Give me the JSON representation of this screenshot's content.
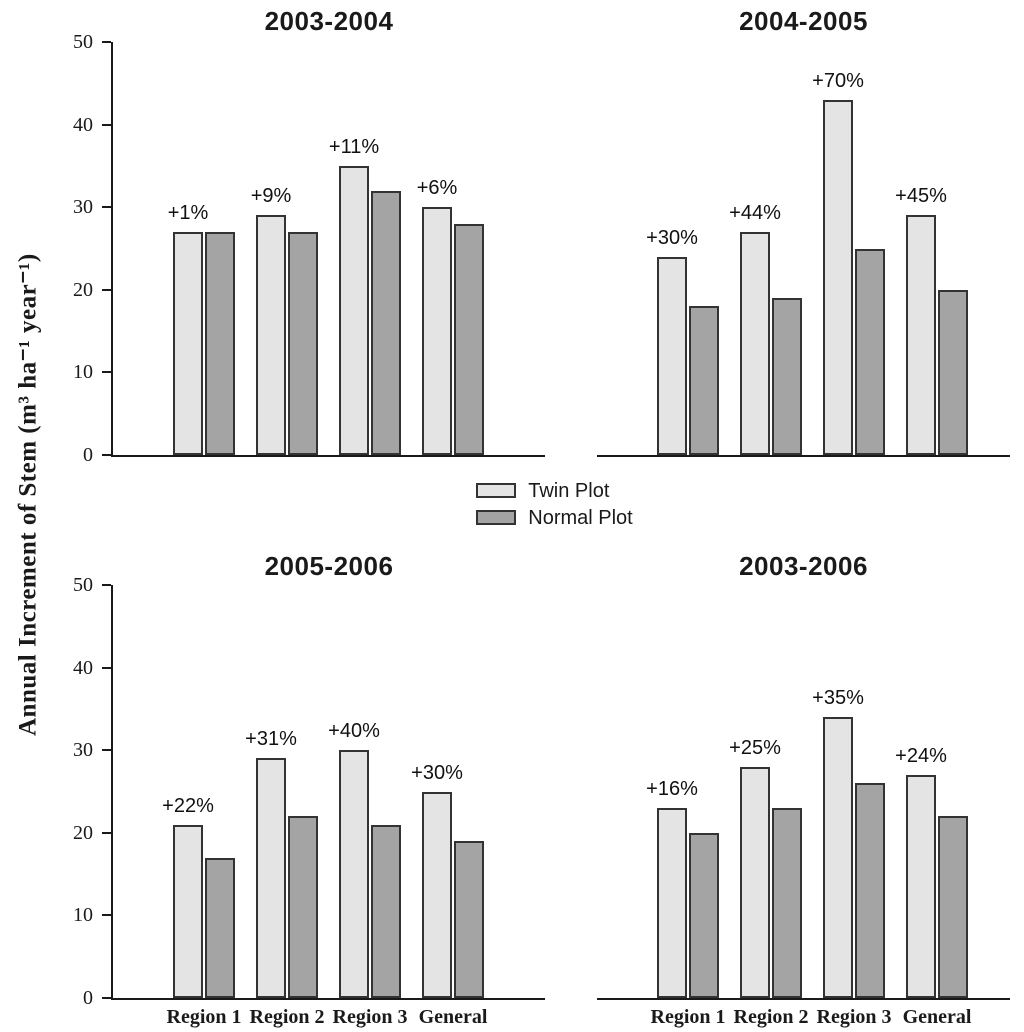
{
  "figure": {
    "y_axis_title": "Annual Increment of Stem  (m³ ha⁻¹ year⁻¹)"
  },
  "legend": {
    "items": [
      {
        "label": "Twin Plot",
        "color": "#e4e4e4"
      },
      {
        "label": "Normal Plot",
        "color": "#a4a4a4"
      }
    ]
  },
  "chart_data": {
    "type": "bar",
    "grouped": true,
    "categories": [
      "Region 1",
      "Region 2",
      "Region 3",
      "General"
    ],
    "ylabel": "Annual Increment of Stem (m³ ha⁻¹ year⁻¹)",
    "ylim": [
      0,
      50
    ],
    "yticks": [
      0,
      10,
      20,
      30,
      40,
      50
    ],
    "grid": false,
    "legend_position": "centered between top and bottom panel rows",
    "colors": {
      "twin": "#e4e4e4",
      "normal": "#a4a4a4",
      "bar_border": "#333333",
      "axis": "#1a1a1a"
    },
    "panels": [
      {
        "title": "2003-2004",
        "y_axis_labels": true,
        "x_axis_labels": false,
        "series": [
          {
            "name": "Twin Plot",
            "values": [
              27,
              29,
              35,
              30
            ]
          },
          {
            "name": "Normal Plot",
            "values": [
              27,
              27,
              32,
              28
            ]
          }
        ],
        "annotations": [
          "+1%",
          "+9%",
          "+11%",
          "+6%"
        ]
      },
      {
        "title": "2004-2005",
        "y_axis_labels": false,
        "x_axis_labels": false,
        "series": [
          {
            "name": "Twin Plot",
            "values": [
              24,
              27,
              43,
              29
            ]
          },
          {
            "name": "Normal Plot",
            "values": [
              18,
              19,
              25,
              20
            ]
          }
        ],
        "annotations": [
          "+30%",
          "+44%",
          "+70%",
          "+45%"
        ]
      },
      {
        "title": "2005-2006",
        "y_axis_labels": true,
        "x_axis_labels": true,
        "series": [
          {
            "name": "Twin Plot",
            "values": [
              21,
              29,
              30,
              25
            ]
          },
          {
            "name": "Normal Plot",
            "values": [
              17,
              22,
              21,
              19
            ]
          }
        ],
        "annotations": [
          "+22%",
          "+31%",
          "+40%",
          "+30%"
        ]
      },
      {
        "title": "2003-2006",
        "y_axis_labels": false,
        "x_axis_labels": true,
        "series": [
          {
            "name": "Twin Plot",
            "values": [
              23,
              28,
              34,
              27
            ]
          },
          {
            "name": "Normal Plot",
            "values": [
              20,
              23,
              26,
              22
            ]
          }
        ],
        "annotations": [
          "+16%",
          "+25%",
          "+35%",
          "+24%"
        ]
      }
    ]
  }
}
